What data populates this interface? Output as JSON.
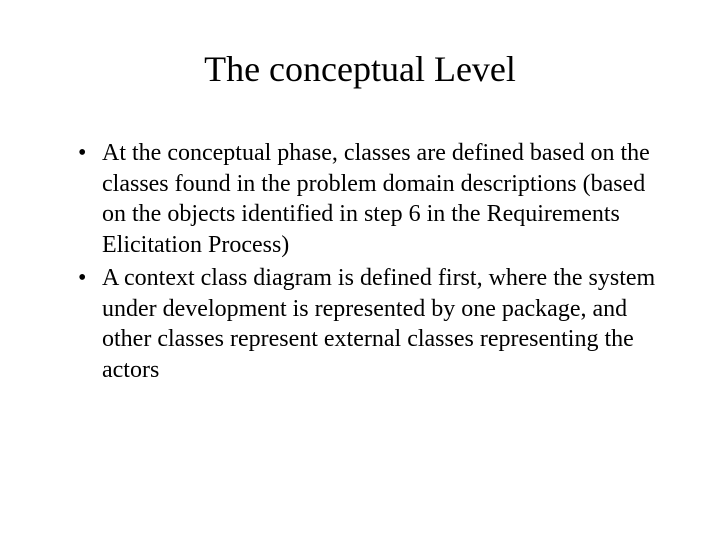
{
  "slide": {
    "title": "The conceptual Level",
    "bullets": [
      "At the conceptual phase, classes are defined based on the classes found in the problem domain descriptions (based on the objects identified in step 6 in the Requirements Elicitation Process)",
      "A context class diagram is defined first, where the system under development is represented by one package, and other classes represent external classes representing the actors"
    ]
  },
  "styling": {
    "background_color": "#ffffff",
    "text_color": "#000000",
    "title_fontsize": 36,
    "body_fontsize": 24,
    "font_family": "Times New Roman"
  }
}
